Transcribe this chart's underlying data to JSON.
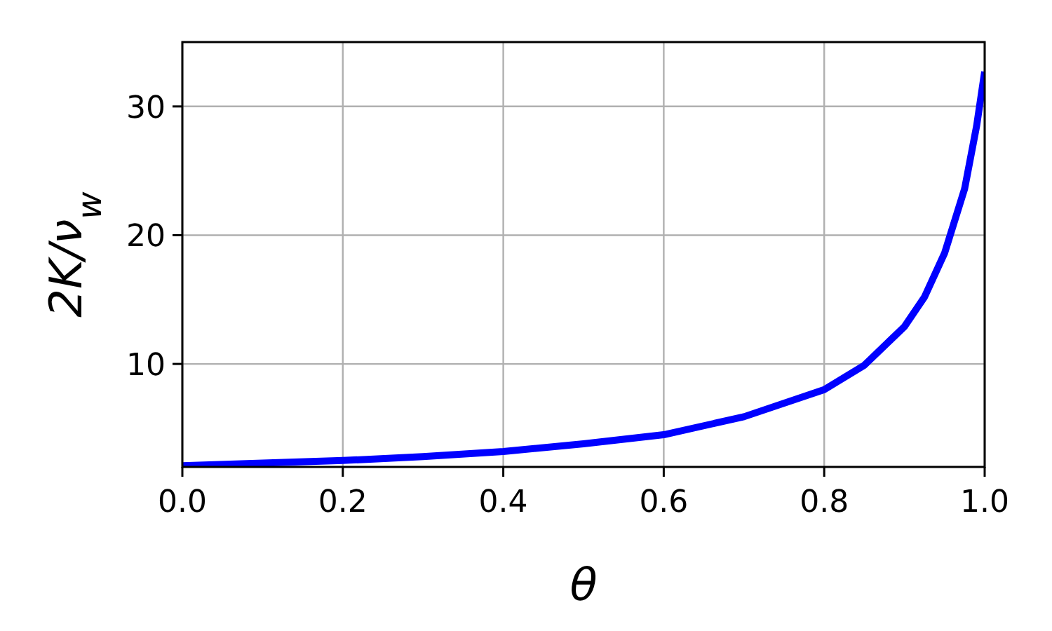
{
  "chart_data": {
    "type": "line",
    "xlabel": "θ",
    "ylabel": "2K/ν$_{w}$",
    "x": [
      0,
      0.1,
      0.2,
      0.3,
      0.4,
      0.5,
      0.6,
      0.7,
      0.8,
      0.85,
      0.9,
      0.925,
      0.95,
      0.975,
      0.99,
      1.0
    ],
    "series": [
      {
        "color": "#0000ff",
        "values": [
          2.1,
          2.3,
          2.5,
          2.8,
          3.2,
          3.8,
          4.5,
          5.9,
          8.0,
          9.9,
          12.9,
          15.2,
          18.6,
          23.6,
          28.5,
          32.7
        ]
      }
    ],
    "xlim": [
      0,
      1
    ],
    "xticks": [
      {
        "value": 0,
        "label": "0.0"
      },
      0.2,
      0.4,
      0.6,
      0.8,
      {
        "value": 1,
        "label": "1.0"
      }
    ],
    "ylim": [
      2,
      35
    ],
    "yticks": [
      10,
      20,
      30
    ],
    "grid": true,
    "marker": "none",
    "line_style": "solid"
  }
}
